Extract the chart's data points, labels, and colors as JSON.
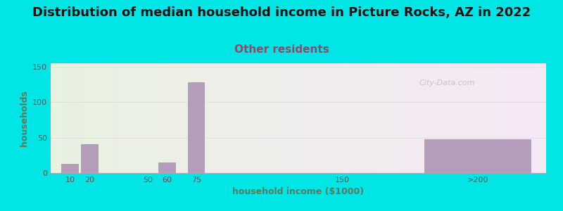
{
  "title": "Distribution of median household income in Picture Rocks, AZ in 2022",
  "subtitle": "Other residents",
  "xlabel": "household income ($1000)",
  "ylabel": "households",
  "bar_values": [
    13,
    41,
    0,
    15,
    128,
    0,
    48
  ],
  "bar_color": "#b39dbb",
  "bar_positions": [
    10,
    20,
    50,
    60,
    75,
    150,
    220
  ],
  "bar_widths": [
    9,
    9,
    9,
    9,
    9,
    9,
    55
  ],
  "xtick_positions": [
    10,
    20,
    50,
    60,
    75,
    150,
    220
  ],
  "xtick_labels": [
    "10",
    "20",
    "50",
    "60",
    "75",
    "150",
    ">200"
  ],
  "yticks": [
    0,
    50,
    100,
    150
  ],
  "ylim": [
    0,
    155
  ],
  "xlim": [
    0,
    255
  ],
  "background_outer": "#00e5e5",
  "background_plot_left": "#e8f2e0",
  "background_plot_right": "#f0eef4",
  "title_fontsize": 13,
  "subtitle_fontsize": 11,
  "subtitle_color": "#8b4a6e",
  "axis_label_fontsize": 9,
  "tick_label_fontsize": 8,
  "watermark_text": "City-Data.com",
  "grid_color": "#e0e0e0",
  "ylabel_color": "#5a7a5a",
  "xlabel_color": "#5a7a5a"
}
